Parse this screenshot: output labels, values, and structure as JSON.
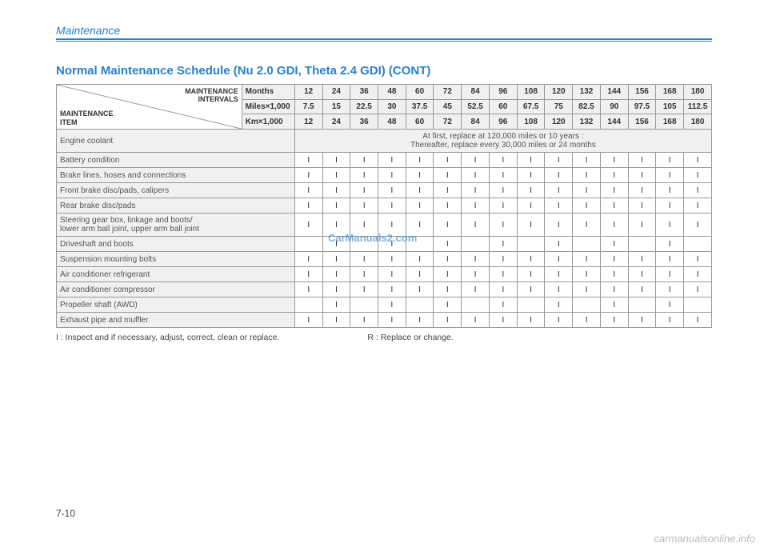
{
  "section": "Maintenance",
  "title": "Normal Maintenance Schedule (Nu 2.0 GDI, Theta 2.4 GDI) (CONT)",
  "pageNumber": "7-10",
  "watermarkCenter": "CarManuals2.com",
  "watermarkBottom": "carmanualsonline.info",
  "cornerTop": "MAINTENANCE\nINTERVALS",
  "cornerBottom": "MAINTENANCE\nITEM",
  "intervalHeaders": [
    {
      "label": "Months",
      "values": [
        "12",
        "24",
        "36",
        "48",
        "60",
        "72",
        "84",
        "96",
        "108",
        "120",
        "132",
        "144",
        "156",
        "168",
        "180"
      ]
    },
    {
      "label": "Miles×1,000",
      "values": [
        "7.5",
        "15",
        "22.5",
        "30",
        "37.5",
        "45",
        "52.5",
        "60",
        "67.5",
        "75",
        "82.5",
        "90",
        "97.5",
        "105",
        "112.5"
      ]
    },
    {
      "label": "Km×1,000",
      "values": [
        "12",
        "24",
        "36",
        "48",
        "60",
        "72",
        "84",
        "96",
        "108",
        "120",
        "132",
        "144",
        "156",
        "168",
        "180"
      ]
    }
  ],
  "rows": [
    {
      "item": "Engine coolant",
      "spanText": "At first, replace at 120,000 miles or 10 years :\nThereafter, replace every 30,000 miles or 24 months"
    },
    {
      "item": "Battery condition",
      "cells": [
        "I",
        "I",
        "I",
        "I",
        "I",
        "I",
        "I",
        "I",
        "I",
        "I",
        "I",
        "I",
        "I",
        "I",
        "I"
      ]
    },
    {
      "item": "Brake lines, hoses and connections",
      "cells": [
        "I",
        "I",
        "I",
        "I",
        "I",
        "I",
        "I",
        "I",
        "I",
        "I",
        "I",
        "I",
        "I",
        "I",
        "I"
      ]
    },
    {
      "item": "Front brake disc/pads, calipers",
      "cells": [
        "I",
        "I",
        "I",
        "I",
        "I",
        "I",
        "I",
        "I",
        "I",
        "I",
        "I",
        "I",
        "I",
        "I",
        "I"
      ]
    },
    {
      "item": "Rear brake disc/pads",
      "cells": [
        "I",
        "I",
        "I",
        "I",
        "I",
        "I",
        "I",
        "I",
        "I",
        "I",
        "I",
        "I",
        "I",
        "I",
        "I"
      ]
    },
    {
      "item": "Steering gear box, linkage and boots/\nlower arm ball joint, upper arm ball joint",
      "cells": [
        "I",
        "I",
        "I",
        "I",
        "I",
        "I",
        "I",
        "I",
        "I",
        "I",
        "I",
        "I",
        "I",
        "I",
        "I"
      ]
    },
    {
      "item": "Driveshaft and boots",
      "cells": [
        "",
        "I",
        "",
        "I",
        "",
        "I",
        "",
        "I",
        "",
        "I",
        "",
        "I",
        "",
        "I",
        ""
      ]
    },
    {
      "item": "Suspension mounting bolts",
      "cells": [
        "I",
        "I",
        "I",
        "I",
        "I",
        "I",
        "I",
        "I",
        "I",
        "I",
        "I",
        "I",
        "I",
        "I",
        "I"
      ]
    },
    {
      "item": "Air conditioner refrigerant",
      "cells": [
        "I",
        "I",
        "I",
        "I",
        "I",
        "I",
        "I",
        "I",
        "I",
        "I",
        "I",
        "I",
        "I",
        "I",
        "I"
      ]
    },
    {
      "item": "Air conditioner compressor",
      "cells": [
        "I",
        "I",
        "I",
        "I",
        "I",
        "I",
        "I",
        "I",
        "I",
        "I",
        "I",
        "I",
        "I",
        "I",
        "I"
      ]
    },
    {
      "item": "Propeller shaft (AWD)",
      "cells": [
        "",
        "I",
        "",
        "I",
        "",
        "I",
        "",
        "I",
        "",
        "I",
        "",
        "I",
        "",
        "I",
        ""
      ]
    },
    {
      "item": "Exhaust pipe and muffler",
      "cells": [
        "I",
        "I",
        "I",
        "I",
        "I",
        "I",
        "I",
        "I",
        "I",
        "I",
        "I",
        "I",
        "I",
        "I",
        "I"
      ]
    }
  ],
  "legendI": "I   : Inspect and if necessary, adjust, correct, clean or replace.",
  "legendR": "R : Replace or change."
}
